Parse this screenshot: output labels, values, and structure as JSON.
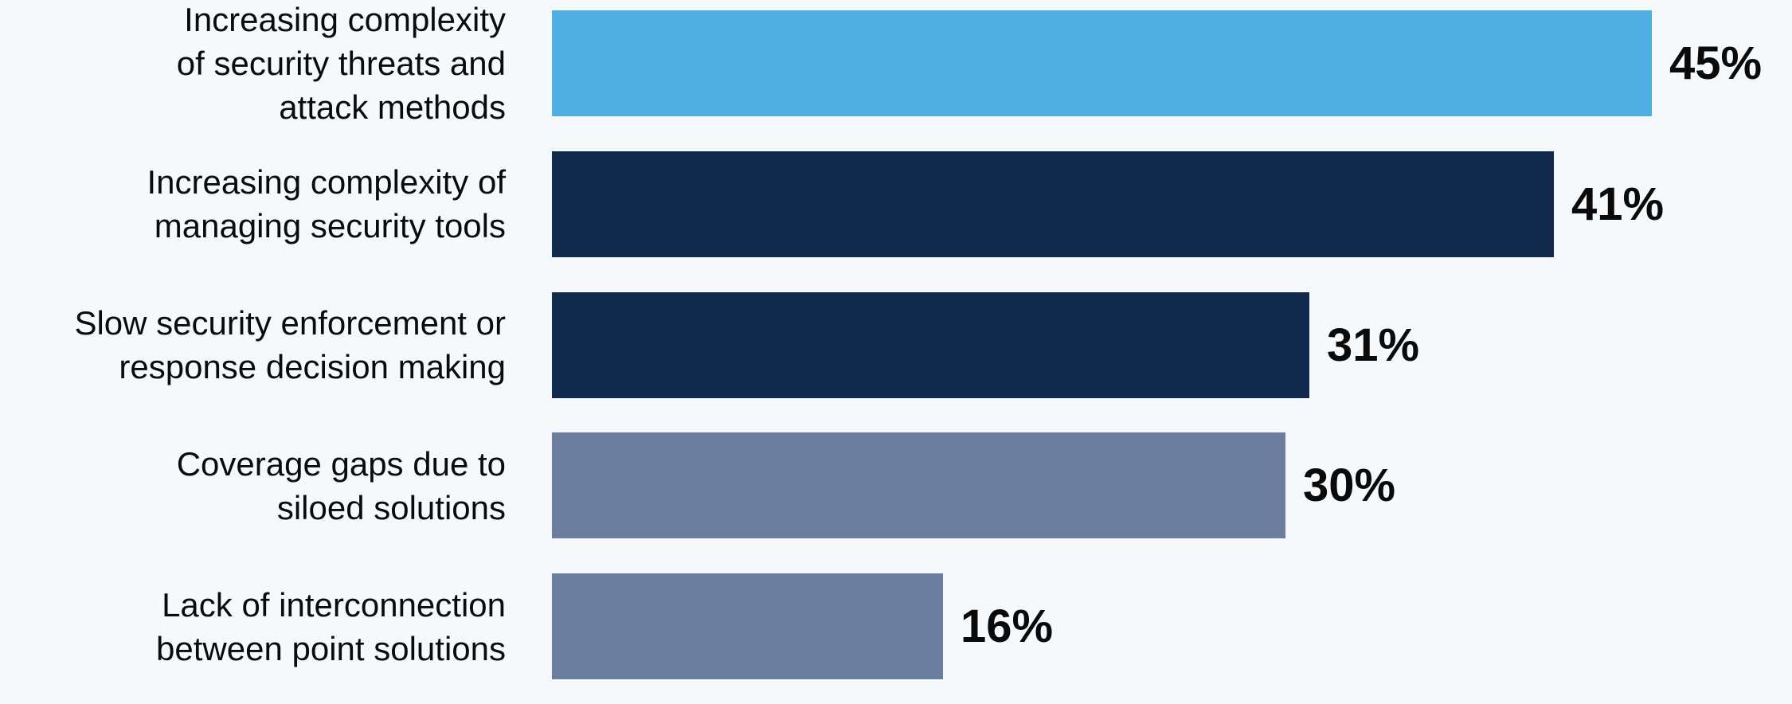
{
  "page": {
    "background_color": "#F5F9FB",
    "text_color": "#0B0B0B"
  },
  "chart_data": {
    "type": "bar",
    "orientation": "horizontal",
    "title": "",
    "xlabel": "",
    "ylabel": "",
    "unit": "%",
    "xlim": [
      0,
      47
    ],
    "grid": false,
    "legend": null,
    "categories": [
      "Increasing complexity of security threats and attack methods",
      "Increasing complexity of managing security tools",
      "Slow security enforcement or response decision making",
      "Coverage gaps due to siloed solutions",
      "Lack of interconnection between point solutions"
    ],
    "values": [
      45,
      41,
      31,
      30,
      16
    ],
    "colors": {
      "highlight_blue": "#4FAEE2",
      "dark_navy": "#12294E",
      "slate_gray_blue": "#6C7EA0"
    },
    "bars": [
      {
        "label": "Increasing complexity\nof security threats and\nattack methods",
        "value": 45,
        "value_label": "45%",
        "color": "#4FAEE2"
      },
      {
        "label": "Increasing complexity of\nmanaging security tools",
        "value": 41,
        "value_label": "41%",
        "color": "#12294E"
      },
      {
        "label": "Slow security enforcement or\nresponse decision making",
        "value": 31,
        "value_label": "31%",
        "color": "#12294E"
      },
      {
        "label": "Coverage gaps due to\nsiloed solutions",
        "value": 30,
        "value_label": "30%",
        "color": "#6C7EA0"
      },
      {
        "label": "Lack of interconnection\nbetween point solutions",
        "value": 16,
        "value_label": "16%",
        "color": "#6C7EA0"
      }
    ]
  }
}
